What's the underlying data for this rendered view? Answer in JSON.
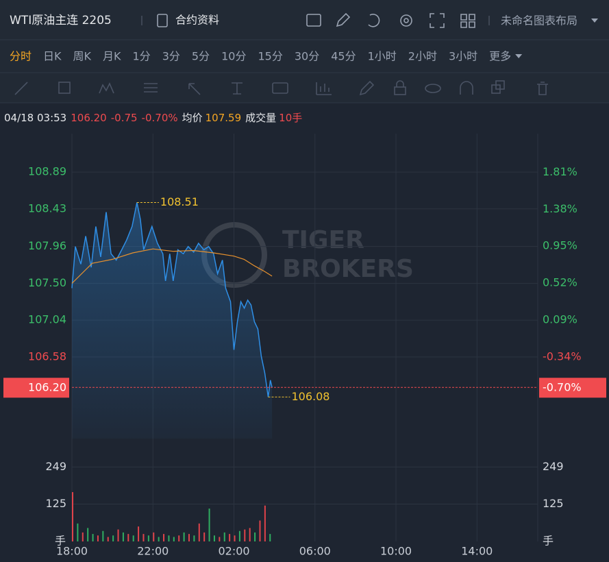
{
  "header": {
    "title": "WTI原油主连 2205",
    "contract_info": "合约资料",
    "layout": "未命名图表布局"
  },
  "periods": [
    "分时",
    "日K",
    "周K",
    "月K",
    "1分",
    "3分",
    "5分",
    "10分",
    "15分",
    "30分",
    "45分",
    "1小时",
    "2小时",
    "3小时",
    "更多"
  ],
  "active_period": 0,
  "quote": {
    "time": "04/18 03:53",
    "price": "106.20",
    "change": "-0.75",
    "change_pct": "-0.70%",
    "avg_label": "均价",
    "avg": "107.59",
    "volume_label": "成交量",
    "volume": "10手"
  },
  "watermark": [
    "TIGER",
    "BROKERS"
  ],
  "chart_data": [
    {
      "type": "line",
      "grid": true,
      "xlim": [
        0,
        23
      ],
      "xticks": [
        {
          "value": 0,
          "label": "18:00"
        },
        {
          "value": 4,
          "label": "22:00"
        },
        {
          "value": 8,
          "label": "02:00"
        },
        {
          "value": 12,
          "label": "06:00"
        },
        {
          "value": 16,
          "label": "10:00"
        },
        {
          "value": 20,
          "label": "14:00"
        }
      ],
      "ylim": [
        105.56,
        109.37
      ],
      "yticks": [
        108.89,
        108.43,
        107.96,
        {
          "value": 107.5,
          "label": "107.50"
        },
        107.04,
        106.58
      ],
      "y2lim": [
        -1.29,
        2.26
      ],
      "y2ticks": [
        {
          "value": 1.81,
          "label": "1.81%"
        },
        {
          "value": 1.38,
          "label": "1.38%"
        },
        {
          "value": 0.95,
          "label": "0.95%"
        },
        {
          "value": 0.52,
          "label": "0.52%"
        },
        {
          "value": 0.09,
          "label": "0.09%"
        },
        {
          "value": -0.34,
          "label": "-0.34%"
        }
      ],
      "up_color": "#3cbf6a",
      "down_color": "#f04b4f",
      "series": [
        {
          "color": "#2f8fe6",
          "x": [
            0,
            0.17,
            0.44,
            0.68,
            0.95,
            1.18,
            1.42,
            1.69,
            1.93,
            2.19,
            2.46,
            2.7,
            2.97,
            3.21,
            3.38,
            3.54,
            3.71,
            3.95,
            4.22,
            4.49,
            4.62,
            4.83,
            5.0,
            5.23,
            5.5,
            5.74,
            6.01,
            6.25,
            6.51,
            6.75,
            6.99,
            7.19,
            7.43,
            7.59,
            7.83,
            8.0,
            8.17,
            8.34,
            8.51,
            8.68,
            8.84,
            9.01,
            9.18,
            9.35,
            9.52,
            9.69,
            9.8,
            9.88
          ],
          "values": [
            107.44,
            107.96,
            107.74,
            108.09,
            107.7,
            108.21,
            107.83,
            108.39,
            107.87,
            107.79,
            107.92,
            108.04,
            108.21,
            108.51,
            108.3,
            107.92,
            108.04,
            108.21,
            108.0,
            107.87,
            107.53,
            107.87,
            107.53,
            107.92,
            107.87,
            107.96,
            107.89,
            108.0,
            107.92,
            107.96,
            107.87,
            107.62,
            107.79,
            107.44,
            107.27,
            106.67,
            107.02,
            107.27,
            107.19,
            107.29,
            107.23,
            107.02,
            106.93,
            106.59,
            106.38,
            106.08,
            106.29,
            106.2
          ]
        },
        {
          "color": "#e8912d",
          "x": [
            0,
            1,
            2,
            3,
            4,
            5,
            6,
            7,
            8,
            8.5,
            9,
            9.5,
            9.88
          ],
          "values": [
            107.5,
            107.75,
            107.8,
            107.88,
            107.93,
            107.9,
            107.91,
            107.88,
            107.84,
            107.8,
            107.72,
            107.65,
            107.59
          ]
        }
      ]
    },
    {
      "type": "bar",
      "x": [
        0,
        0.25,
        0.5,
        0.75,
        1,
        1.25,
        1.5,
        1.75,
        2,
        2.25,
        2.5,
        2.75,
        3,
        3.25,
        3.5,
        3.75,
        4,
        4.25,
        4.5,
        4.75,
        5,
        5.25,
        5.5,
        5.75,
        6,
        6.25,
        6.5,
        6.75,
        7,
        7.25,
        7.5,
        7.75,
        8,
        8.25,
        8.5,
        8.75,
        9,
        9.25,
        9.5,
        9.75
      ],
      "values": [
        165,
        60,
        30,
        45,
        25,
        20,
        35,
        15,
        20,
        40,
        30,
        25,
        20,
        50,
        25,
        20,
        30,
        15,
        25,
        20,
        15,
        20,
        30,
        25,
        20,
        60,
        30,
        110,
        20,
        15,
        30,
        25,
        20,
        35,
        40,
        45,
        30,
        70,
        120,
        25
      ],
      "colors": [
        "#e0434a",
        "#2fae60",
        "#e0434a",
        "#2fae60",
        "#2fae60",
        "#e0434a",
        "#2fae60",
        "#e0434a",
        "#2fae60",
        "#e0434a",
        "#2fae60",
        "#e0434a",
        "#2fae60",
        "#e0434a",
        "#e0434a",
        "#2fae60",
        "#e0434a",
        "#2fae60",
        "#e0434a",
        "#2fae60",
        "#2fae60",
        "#e0434a",
        "#2fae60",
        "#e0434a",
        "#2fae60",
        "#e0434a",
        "#e0434a",
        "#2fae60",
        "#2fae60",
        "#e0434a",
        "#2fae60",
        "#e0434a",
        "#e0434a",
        "#2fae60",
        "#e0434a",
        "#e0434a",
        "#2fae60",
        "#e0434a",
        "#e0434a",
        "#2fae60"
      ],
      "ylim": [
        0,
        344
      ],
      "yticks": [
        125,
        249
      ],
      "unit": "手"
    }
  ]
}
